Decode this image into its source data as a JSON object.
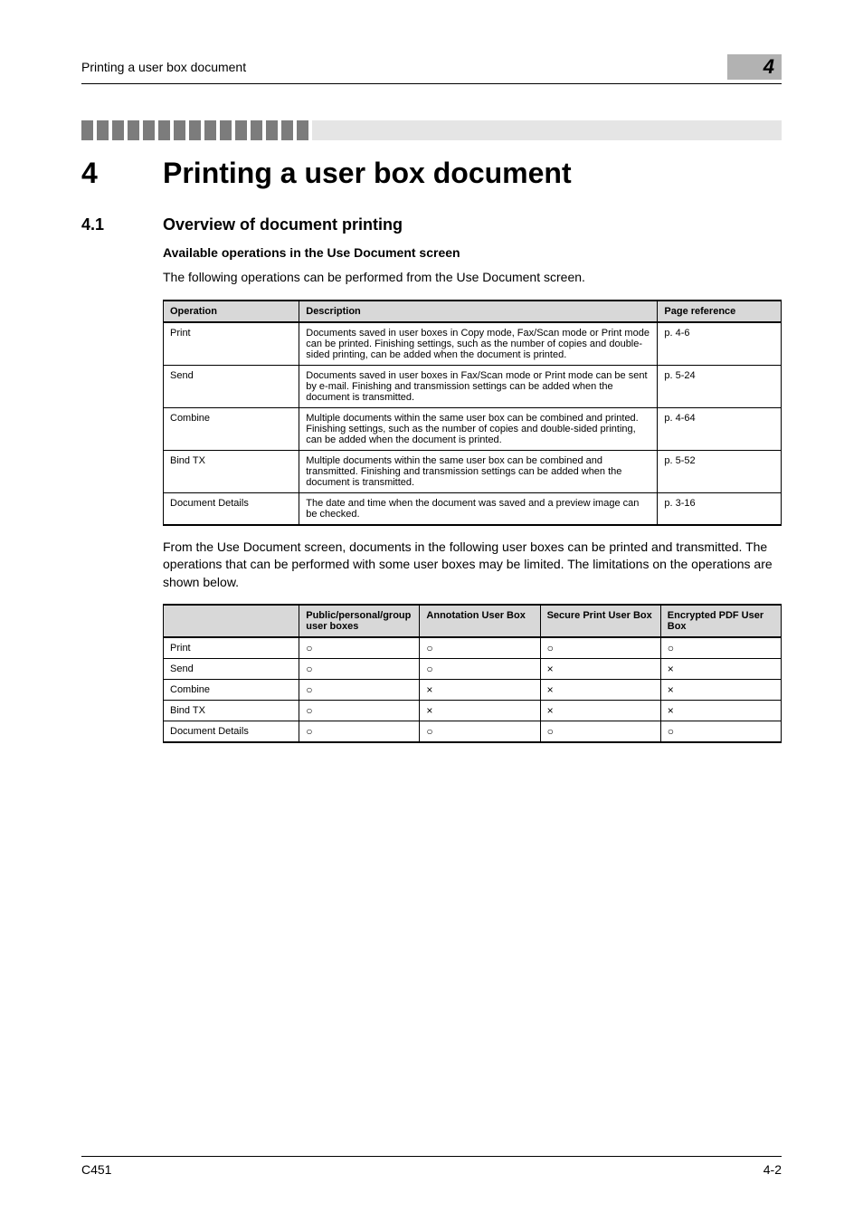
{
  "running_header": "Printing a user box document",
  "corner_number": "4",
  "chapter": {
    "num": "4",
    "title": "Printing a user box document"
  },
  "section": {
    "num": "4.1",
    "title": "Overview of document printing"
  },
  "subheading": "Available operations in the Use Document screen",
  "intro_para": "The following operations can be performed from the Use Document screen.",
  "table1": {
    "columns": [
      "Operation",
      "Description",
      "Page reference"
    ],
    "rows": [
      [
        "Print",
        "Documents saved in user boxes in Copy mode, Fax/Scan mode or Print mode can be printed. Finishing settings, such as the number of copies and double-sided printing, can be added when the document is printed.",
        "p. 4-6"
      ],
      [
        "Send",
        "Documents saved in user boxes in Fax/Scan mode or Print mode can be sent by e-mail. Finishing and transmission settings can be added when the document is transmitted.",
        "p. 5-24"
      ],
      [
        "Combine",
        "Multiple documents within the same user box can be combined and printed. Finishing settings, such as the number of copies and double-sided printing, can be added when the document is printed.",
        "p. 4-64"
      ],
      [
        "Bind TX",
        "Multiple documents within the same user box can be combined and transmitted. Finishing and transmission settings can be added when the document is transmitted.",
        "p. 5-52"
      ],
      [
        "Document Details",
        "The date and time when the document was saved and a preview image can be checked.",
        "p. 3-16"
      ]
    ],
    "col_widths_pct": [
      22,
      58,
      20
    ],
    "header_bg": "#d8d8d8",
    "border_color": "#000000",
    "fontsize": 11
  },
  "mid_para": "From the Use Document screen, documents in the following user boxes can be printed and transmitted. The operations that can be performed with some user boxes may be limited. The limitations on the operations are shown below.",
  "table2": {
    "columns": [
      "",
      "Public/personal/group user boxes",
      "Annotation User Box",
      "Secure Print User Box",
      "Encrypted PDF User Box"
    ],
    "rows": [
      [
        "Print",
        "○",
        "○",
        "○",
        "○"
      ],
      [
        "Send",
        "○",
        "○",
        "×",
        "×"
      ],
      [
        "Combine",
        "○",
        "×",
        "×",
        "×"
      ],
      [
        "Bind TX",
        "○",
        "×",
        "×",
        "×"
      ],
      [
        "Document Details",
        "○",
        "○",
        "○",
        "○"
      ]
    ],
    "col_widths_pct": [
      22,
      19.5,
      19.5,
      19.5,
      19.5
    ],
    "header_bg": "#d8d8d8",
    "border_color": "#000000",
    "fontsize": 11,
    "circle_glyph": "○",
    "cross_glyph": "×"
  },
  "footer": {
    "left": "C451",
    "right": "4-2"
  },
  "colors": {
    "page_bg": "#ffffff",
    "stripe_dark": "#7c7c7c",
    "stripe_light": "#e5e5e5",
    "corner_bg": "#b2b2b2",
    "text": "#000000"
  }
}
